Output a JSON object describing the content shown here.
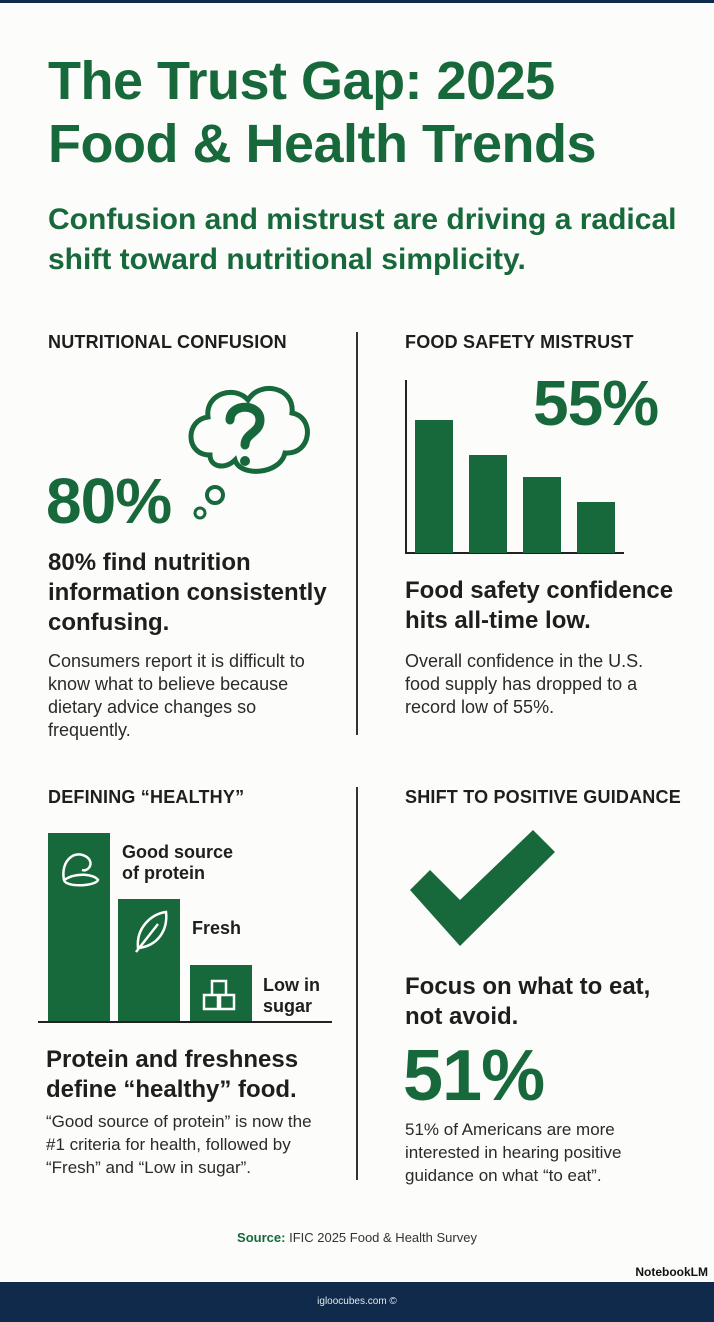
{
  "header": {
    "title": "The Trust Gap: 2025 Food & Health Trends",
    "subtitle": "Confusion and mistrust are driving a radical shift toward nutritional simplicity."
  },
  "panels": [
    {
      "label": "NUTRITIONAL CONFUSION",
      "stat": "80%",
      "headline": "80% find nutrition information consistently confusing.",
      "body": "Consumers report it is difficult to know what to believe because dietary advice changes so frequently."
    },
    {
      "label": "FOOD SAFETY MISTRUST",
      "stat": "55%",
      "headline": "Food safety confidence hits all-time low.",
      "body": "Overall confidence in the U.S. food supply has dropped to a record low of 55%."
    },
    {
      "label": "DEFINING “HEALTHY”",
      "items": [
        "Good source of protein",
        "Fresh",
        "Low in sugar"
      ],
      "headline": "Protein and freshness define “healthy” food.",
      "body": "“Good source of protein” is now the #1 criteria for health, followed by “Fresh” and “Low in sugar”."
    },
    {
      "label": "SHIFT TO POSITIVE GUIDANCE",
      "headline": "Focus on what to eat, not avoid.",
      "stat": "51%",
      "body": "51% of Americans are more interested in hearing positive guidance on what “to eat”."
    }
  ],
  "footer": {
    "source_label": "Source:",
    "source": "IFIC 2025 Food & Health Survey",
    "brand": "NotebookLM",
    "site": "igloocubes.com ©"
  }
}
